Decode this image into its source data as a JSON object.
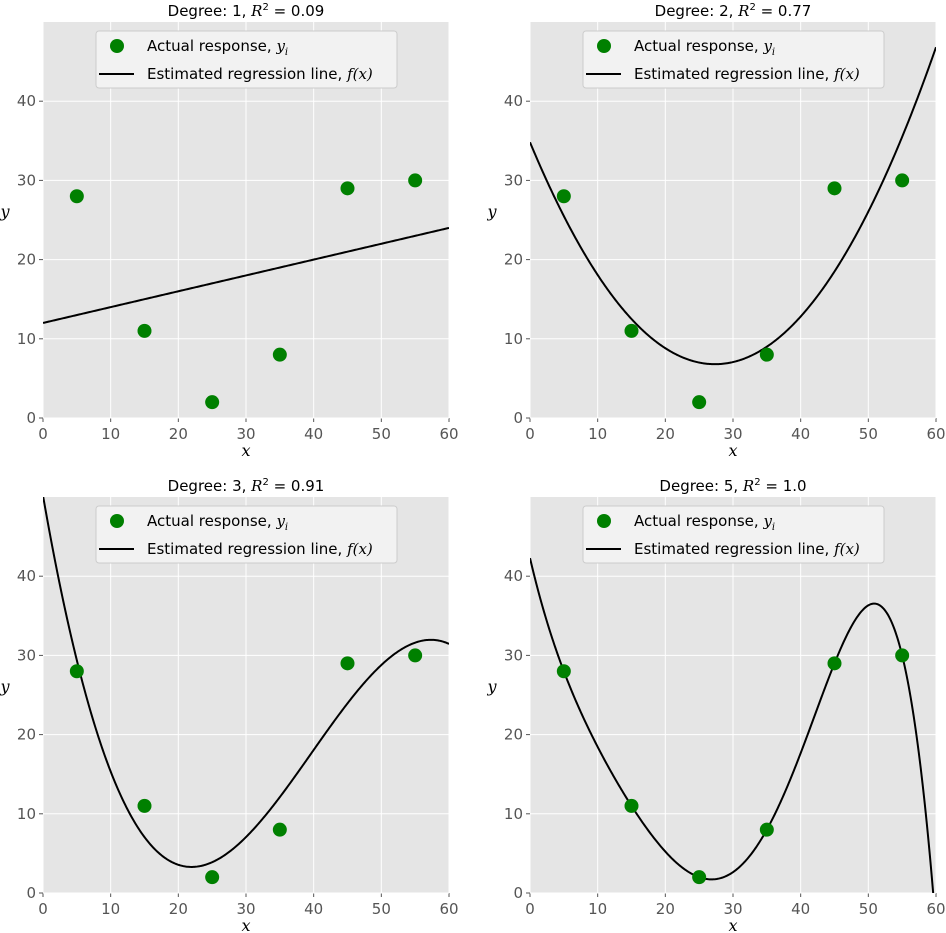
{
  "chart_data": [
    {
      "type": "scatter+line",
      "title": {
        "degree_label": "Degree: 1,",
        "r2_symbol": "R",
        "r2_exp": "2",
        "r2_value": "= 0.09"
      },
      "degree": 1,
      "xlabel": "x",
      "ylabel": "y",
      "xlim": [
        0,
        60
      ],
      "ylim": [
        0,
        50
      ],
      "xticks": [
        "0",
        "10",
        "20",
        "30",
        "40",
        "50",
        "60"
      ],
      "yticks": [
        "0",
        "10",
        "20",
        "30",
        "40"
      ],
      "x": [
        5,
        15,
        25,
        35,
        45,
        55
      ],
      "y": [
        28,
        11,
        2,
        8,
        29,
        30
      ],
      "grid": true,
      "legend": {
        "placement": "top-center",
        "points_label": "Actual response, ",
        "points_var": "y",
        "points_sub": "i",
        "line_label": "Estimated regression line, ",
        "line_var": "f(x)"
      }
    },
    {
      "type": "scatter+line",
      "title": {
        "degree_label": "Degree: 2,",
        "r2_symbol": "R",
        "r2_exp": "2",
        "r2_value": "= 0.77"
      },
      "degree": 2,
      "xlabel": "x",
      "ylabel": "y",
      "xlim": [
        0,
        60
      ],
      "ylim": [
        0,
        50
      ],
      "xticks": [
        "0",
        "10",
        "20",
        "30",
        "40",
        "50",
        "60"
      ],
      "yticks": [
        "0",
        "10",
        "20",
        "30",
        "40"
      ],
      "x": [
        5,
        15,
        25,
        35,
        45,
        55
      ],
      "y": [
        28,
        11,
        2,
        8,
        29,
        30
      ],
      "grid": true,
      "legend": {
        "placement": "top-center",
        "points_label": "Actual response, ",
        "points_var": "y",
        "points_sub": "i",
        "line_label": "Estimated regression line, ",
        "line_var": "f(x)"
      }
    },
    {
      "type": "scatter+line",
      "title": {
        "degree_label": "Degree: 3,",
        "r2_symbol": "R",
        "r2_exp": "2",
        "r2_value": "= 0.91"
      },
      "degree": 3,
      "xlabel": "x",
      "ylabel": "y",
      "xlim": [
        0,
        60
      ],
      "ylim": [
        0,
        50
      ],
      "xticks": [
        "0",
        "10",
        "20",
        "30",
        "40",
        "50",
        "60"
      ],
      "yticks": [
        "0",
        "10",
        "20",
        "30",
        "40"
      ],
      "x": [
        5,
        15,
        25,
        35,
        45,
        55
      ],
      "y": [
        28,
        11,
        2,
        8,
        29,
        30
      ],
      "grid": true,
      "legend": {
        "placement": "top-center",
        "points_label": "Actual response, ",
        "points_var": "y",
        "points_sub": "i",
        "line_label": "Estimated regression line, ",
        "line_var": "f(x)"
      }
    },
    {
      "type": "scatter+line",
      "title": {
        "degree_label": "Degree: 5,",
        "r2_symbol": "R",
        "r2_exp": "2",
        "r2_value": "= 1.0"
      },
      "degree": 5,
      "xlabel": "x",
      "ylabel": "y",
      "xlim": [
        0,
        60
      ],
      "ylim": [
        0,
        50
      ],
      "xticks": [
        "0",
        "10",
        "20",
        "30",
        "40",
        "50",
        "60"
      ],
      "yticks": [
        "0",
        "10",
        "20",
        "30",
        "40"
      ],
      "x": [
        5,
        15,
        25,
        35,
        45,
        55
      ],
      "y": [
        28,
        11,
        2,
        8,
        29,
        30
      ],
      "grid": true,
      "legend": {
        "placement": "top-center",
        "points_label": "Actual response, ",
        "points_var": "y",
        "points_sub": "i",
        "line_label": "Estimated regression line, ",
        "line_var": "f(x)"
      }
    }
  ],
  "colors": {
    "background": "#e5e5e5",
    "grid": "#ffffff",
    "points": "#008000",
    "line": "#000000",
    "tick_text": "#555555"
  }
}
